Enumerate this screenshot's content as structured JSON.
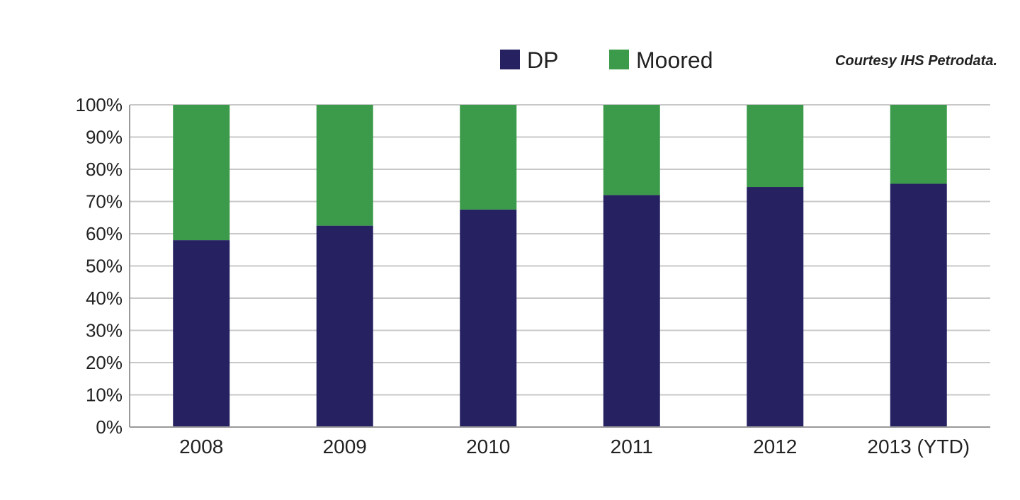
{
  "credit": "Courtesy IHS Petrodata.",
  "chart_data": {
    "type": "bar",
    "stacked": true,
    "categories": [
      "2008",
      "2009",
      "2010",
      "2011",
      "2012",
      "2013 (YTD)"
    ],
    "series": [
      {
        "name": "DP",
        "values": [
          58,
          62.5,
          67.5,
          72,
          74.5,
          75.5
        ]
      },
      {
        "name": "Moored",
        "values": [
          42,
          37.5,
          32.5,
          28,
          25.5,
          24.5
        ]
      }
    ],
    "colors": {
      "DP": "#262262",
      "Moored": "#3b9b4a",
      "grid": "#c8c8c8"
    },
    "yticks": [
      "0%",
      "10%",
      "20%",
      "30%",
      "40%",
      "50%",
      "60%",
      "70%",
      "80%",
      "90%",
      "100%"
    ],
    "ylim": [
      0,
      100
    ],
    "grid": true,
    "legend": "top-center"
  }
}
